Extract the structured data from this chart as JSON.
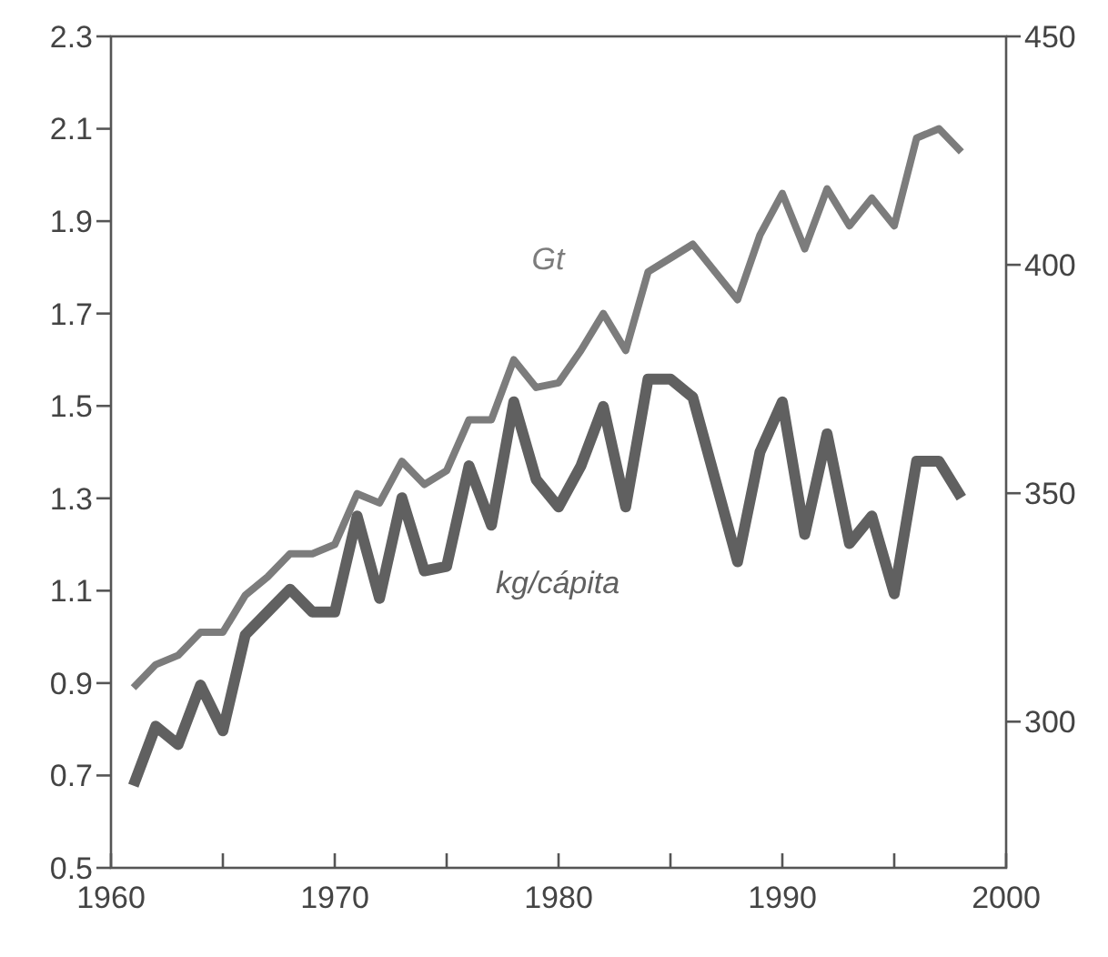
{
  "chart_data": {
    "type": "line",
    "x": [
      1961,
      1962,
      1963,
      1964,
      1965,
      1966,
      1967,
      1968,
      1969,
      1970,
      1971,
      1972,
      1973,
      1974,
      1975,
      1976,
      1977,
      1978,
      1979,
      1980,
      1981,
      1982,
      1983,
      1984,
      1985,
      1986,
      1987,
      1988,
      1989,
      1990,
      1991,
      1992,
      1993,
      1994,
      1995,
      1996,
      1997,
      1998
    ],
    "series": [
      {
        "name": "Gt",
        "color": "#7c7c7c",
        "values": [
          0.89,
          0.94,
          0.96,
          1.01,
          1.01,
          1.09,
          1.13,
          1.18,
          1.18,
          1.2,
          1.31,
          1.29,
          1.38,
          1.33,
          1.36,
          1.47,
          1.47,
          1.6,
          1.54,
          1.55,
          1.62,
          1.7,
          1.62,
          1.79,
          1.82,
          1.85,
          1.79,
          1.73,
          1.87,
          1.96,
          1.84,
          1.97,
          1.89,
          1.95,
          1.89,
          2.08,
          2.1,
          2.05
        ]
      },
      {
        "name": "kg/cápita",
        "color": "#606060",
        "axis": "y2",
        "values": [
          286,
          299,
          295,
          308,
          298,
          319,
          324,
          329,
          324,
          324,
          345,
          327,
          349,
          333,
          334,
          356,
          343,
          370,
          353,
          347,
          356,
          369,
          347,
          375,
          375,
          371,
          353,
          335,
          359,
          370,
          341,
          363,
          339,
          345,
          328,
          357,
          357,
          349
        ]
      }
    ],
    "xlim": [
      1960,
      2000
    ],
    "xticks": [
      1960,
      {
        "value": 1965,
        "label": null
      },
      1970,
      {
        "value": 1975,
        "label": null
      },
      1980,
      {
        "value": 1985,
        "label": null
      },
      1990,
      {
        "value": 1995,
        "label": null
      },
      2000
    ],
    "ylim": [
      0.5,
      2.3
    ],
    "yticks": [
      0.5,
      0.7,
      0.9,
      1.1,
      1.3,
      1.5,
      1.7,
      1.9,
      2.1,
      2.3
    ],
    "y2lim": [
      268,
      450
    ],
    "y2ticks": [
      300,
      350,
      400,
      450
    ],
    "grid": false,
    "marker": "none",
    "line_style": "solid"
  }
}
